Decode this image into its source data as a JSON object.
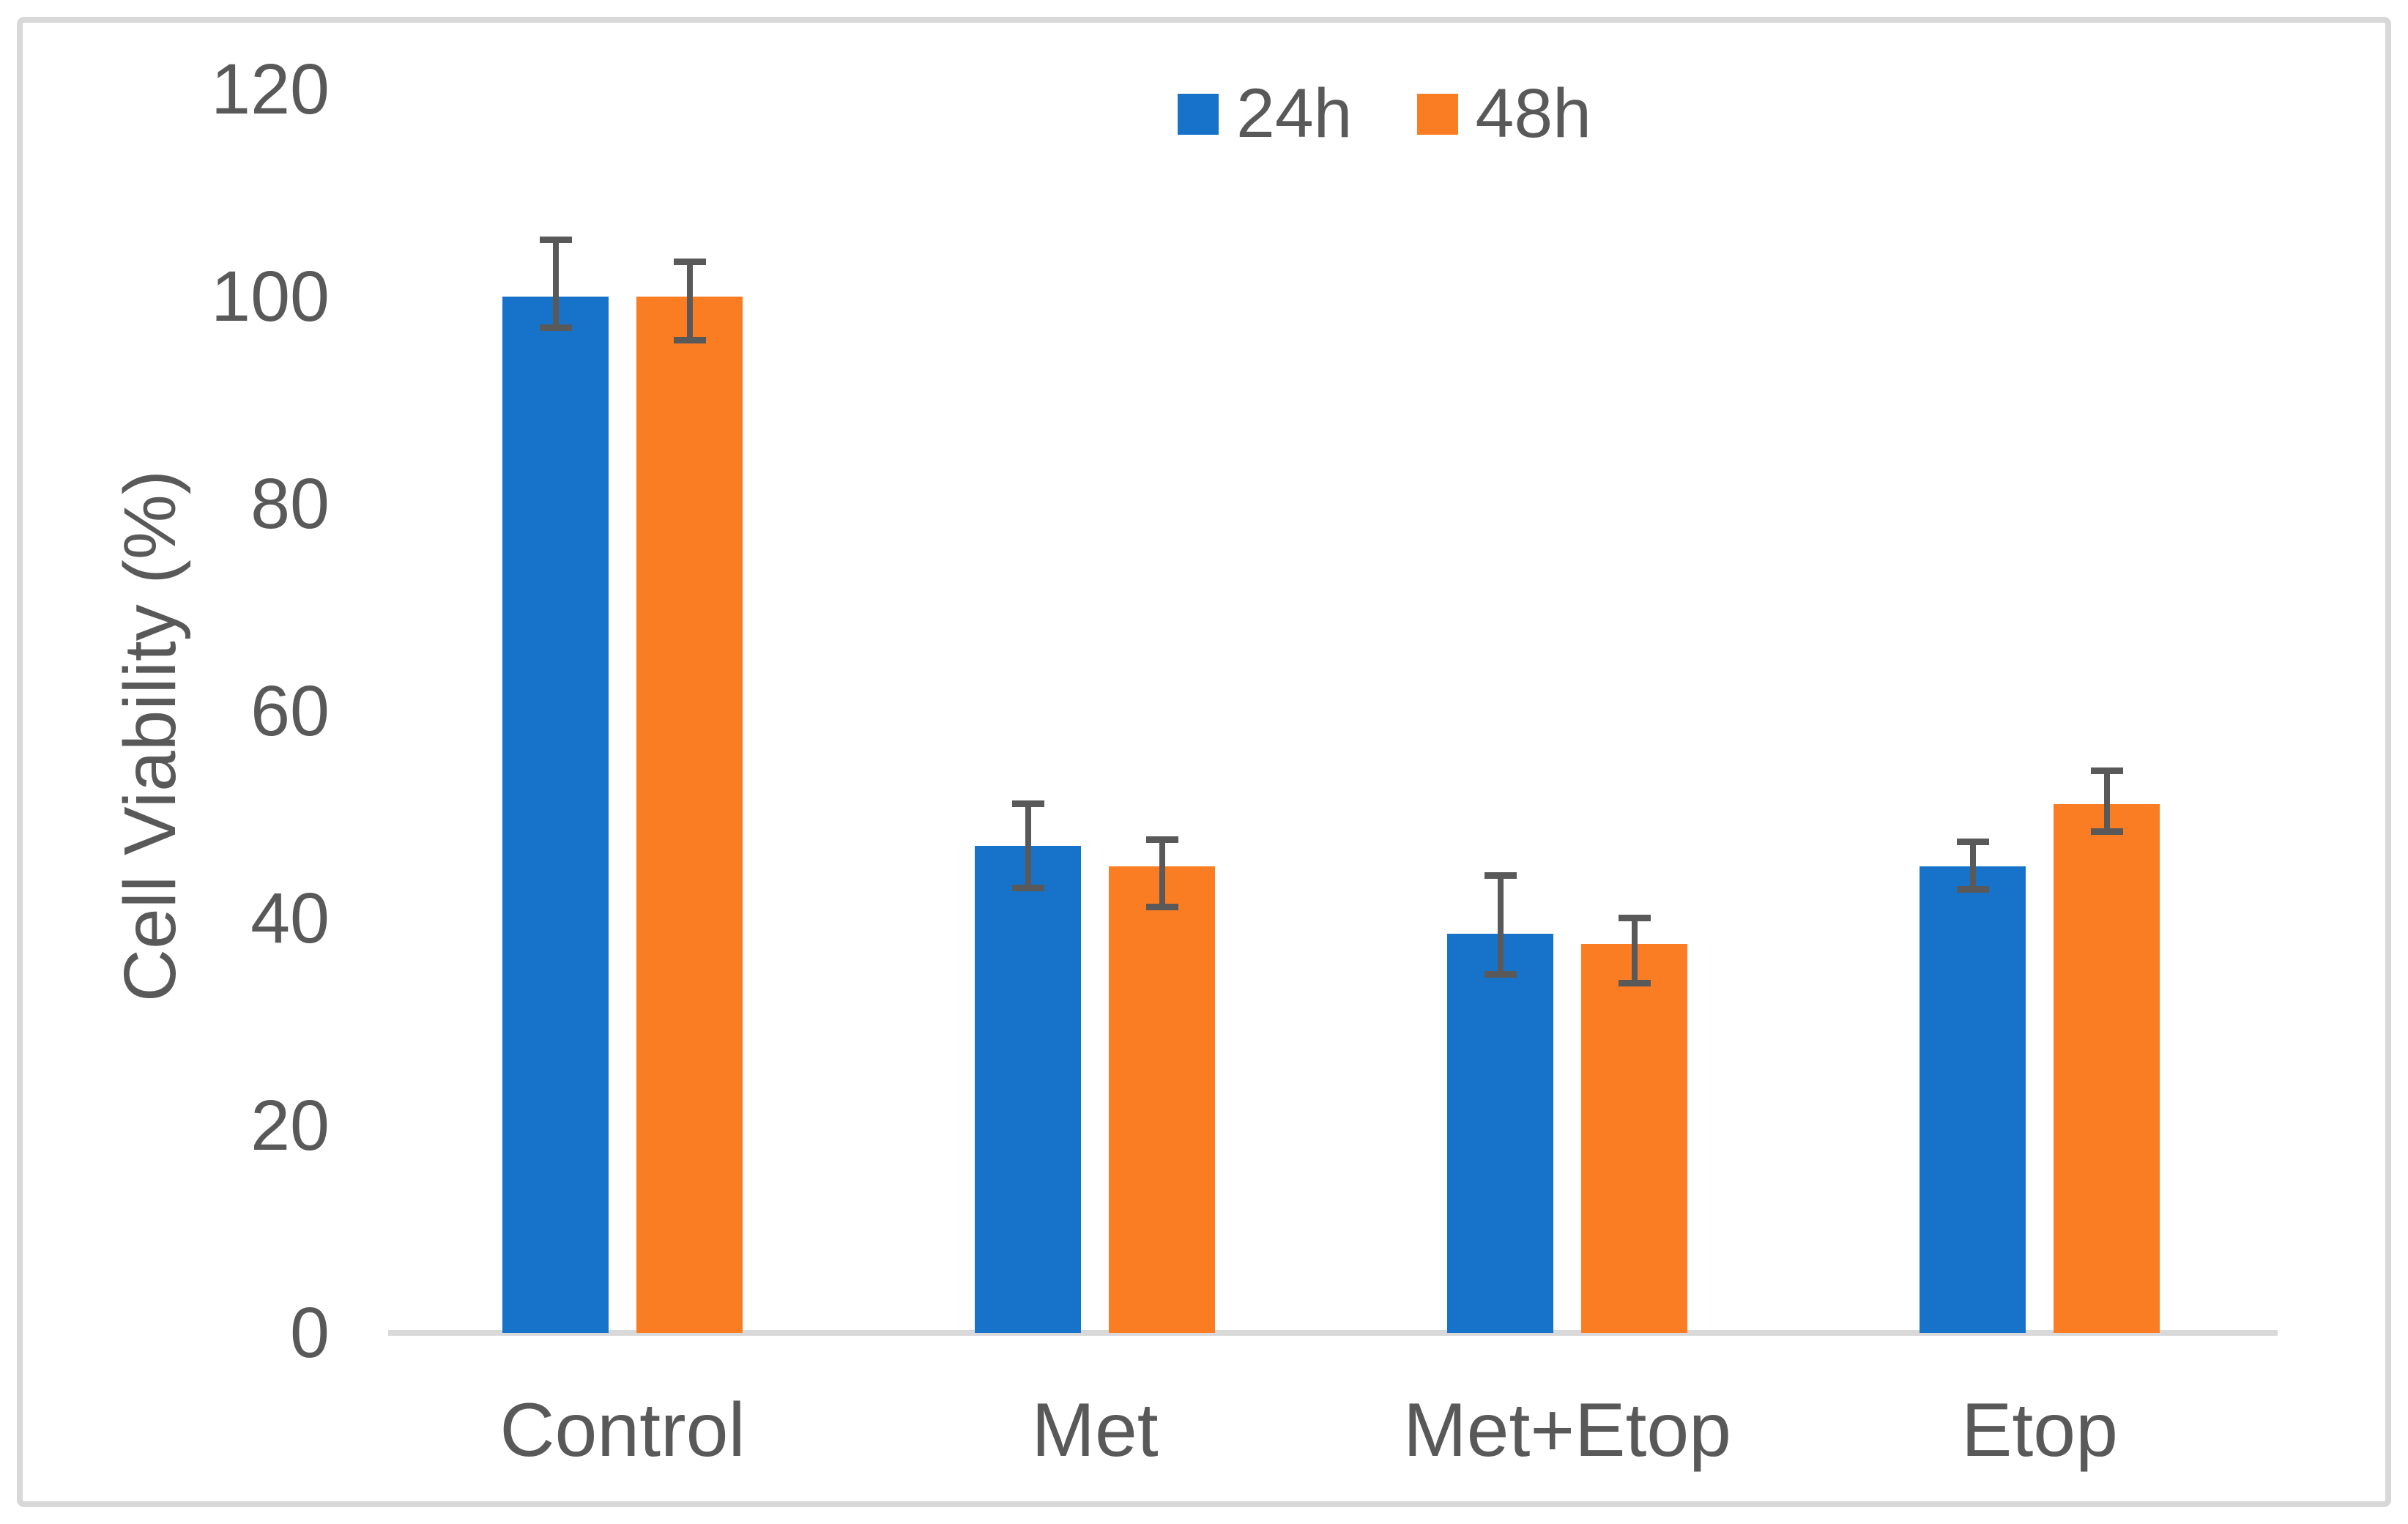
{
  "figure": {
    "background": "#ffffff",
    "border_color": "#d8d8d8",
    "axis_line_color": "#d9d9d9",
    "text_color": "#595959"
  },
  "chart_data": {
    "type": "bar",
    "title": "",
    "categories": [
      "Control",
      "Met",
      "Met+Etop",
      "Etop"
    ],
    "series": [
      {
        "name": "24h",
        "color": "#1673c9",
        "values": [
          100,
          47,
          38.5,
          45
        ],
        "err_up": [
          5.5,
          4.1,
          5.7,
          2.4
        ],
        "err_down": [
          3.0,
          4.0,
          3.9,
          2.2
        ]
      },
      {
        "name": "48h",
        "color": "#fb7d23",
        "values": [
          100,
          45,
          37.5,
          51
        ],
        "err_up": [
          3.4,
          2.6,
          2.6,
          3.3
        ],
        "err_down": [
          4.2,
          3.9,
          3.7,
          2.6
        ]
      }
    ],
    "xlabel": "",
    "ylabel": "Cell Viability (%)",
    "ylim": [
      0,
      120
    ],
    "yticks": [
      0,
      20,
      40,
      60,
      80,
      100,
      120
    ],
    "grid": false,
    "legend_position": "top-center",
    "error_bar_color": "#595959"
  }
}
